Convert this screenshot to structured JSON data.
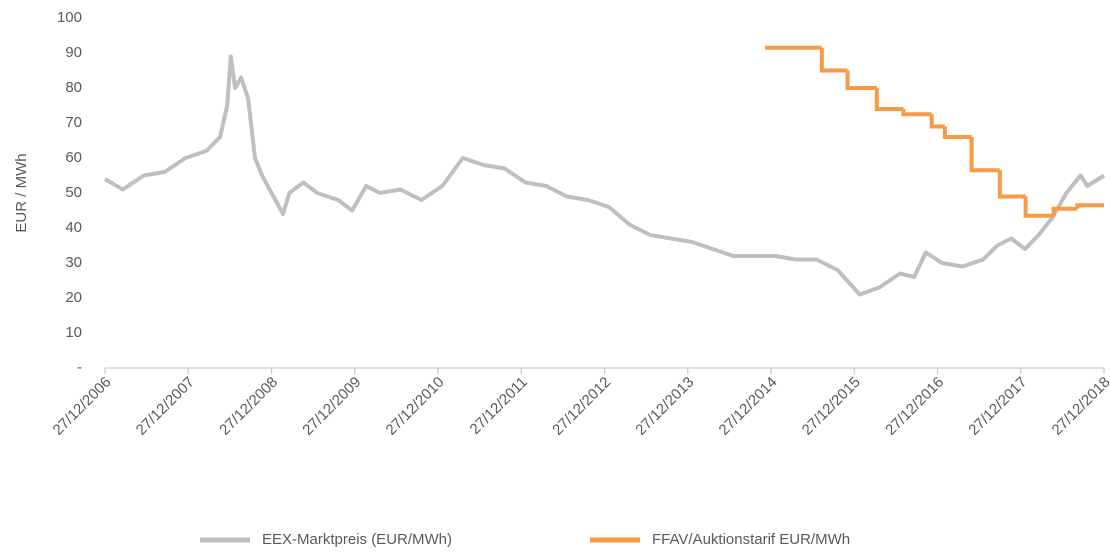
{
  "chart_data": {
    "type": "line",
    "y_label": "EUR / MWh",
    "xlim": [
      "2006-12-27",
      "2018-12-27"
    ],
    "xticks": [
      {
        "value": "2006-12-27",
        "label": "27/12/2006"
      },
      {
        "value": "2007-12-27",
        "label": "27/12/2007"
      },
      {
        "value": "2008-12-27",
        "label": "27/12/2008"
      },
      {
        "value": "2009-12-27",
        "label": "27/12/2009"
      },
      {
        "value": "2010-12-27",
        "label": "27/12/2010"
      },
      {
        "value": "2011-12-27",
        "label": "27/12/2011"
      },
      {
        "value": "2012-12-27",
        "label": "27/12/2012"
      },
      {
        "value": "2013-12-27",
        "label": "27/12/2013"
      },
      {
        "value": "2014-12-27",
        "label": "27/12/2014"
      },
      {
        "value": "2015-12-27",
        "label": "27/12/2015"
      },
      {
        "value": "2016-12-27",
        "label": "27/12/2016"
      },
      {
        "value": "2017-12-27",
        "label": "27/12/2017"
      },
      {
        "value": "2018-12-27",
        "label": "27/12/2018"
      }
    ],
    "ylim": [
      0,
      100
    ],
    "yticks": [
      {
        "value": 0,
        "label": "-"
      },
      10,
      20,
      30,
      40,
      50,
      60,
      70,
      80,
      90,
      100
    ],
    "series": [
      {
        "name": "EEX-Marktpreis (EUR/MWh)",
        "color": "#bfbfbf",
        "x": [
          "2006-12-27",
          "2007-03-15",
          "2007-06-15",
          "2007-09-15",
          "2007-12-15",
          "2008-03-15",
          "2008-05-15",
          "2008-06-15",
          "2008-07-01",
          "2008-07-20",
          "2008-08-15",
          "2008-09-15",
          "2008-10-15",
          "2008-11-15",
          "2009-02-15",
          "2009-03-15",
          "2009-05-15",
          "2009-07-15",
          "2009-10-15",
          "2009-12-15",
          "2010-02-15",
          "2010-04-15",
          "2010-07-15",
          "2010-10-15",
          "2011-01-15",
          "2011-04-15",
          "2011-07-15",
          "2011-10-15",
          "2012-01-15",
          "2012-04-15",
          "2012-07-15",
          "2012-10-15",
          "2013-01-15",
          "2013-04-15",
          "2013-07-15",
          "2013-10-15",
          "2014-01-15",
          "2014-04-15",
          "2014-07-15",
          "2014-10-15",
          "2015-01-15",
          "2015-04-15",
          "2015-07-15",
          "2015-10-15",
          "2016-01-20",
          "2016-04-15",
          "2016-07-15",
          "2016-09-15",
          "2016-11-05",
          "2017-01-15",
          "2017-04-15",
          "2017-07-15",
          "2017-09-15",
          "2017-11-15",
          "2018-01-15",
          "2018-03-15",
          "2018-05-15",
          "2018-07-15",
          "2018-09-15",
          "2018-10-15",
          "2018-12-27"
        ],
        "values": [
          54,
          51,
          55,
          56,
          60,
          62,
          66,
          75,
          89,
          80,
          83,
          77,
          60,
          55,
          44,
          50,
          53,
          50,
          48,
          45,
          52,
          50,
          51,
          48,
          52,
          60,
          58,
          57,
          53,
          52,
          49,
          48,
          46,
          41,
          38,
          37,
          36,
          34,
          32,
          32,
          32,
          31,
          31,
          28,
          21,
          23,
          27,
          26,
          33,
          30,
          29,
          31,
          35,
          37,
          34,
          38,
          43,
          50,
          55,
          52,
          55
        ]
      },
      {
        "name": "FFAV/Auktionstarif EUR/MWh",
        "color": "#f79a46",
        "step": "post",
        "x": [
          "2014-12-01",
          "2015-08-07",
          "2015-11-28",
          "2016-04-04",
          "2016-07-30",
          "2016-12-01",
          "2017-01-28",
          "2017-05-25",
          "2017-09-26",
          "2018-01-17",
          "2018-05-20",
          "2018-09-01",
          "2018-12-27"
        ],
        "values": [
          91.5,
          85,
          80,
          74,
          72.5,
          69,
          66,
          56.5,
          49,
          43.5,
          45.5,
          46.5,
          46.5
        ]
      }
    ],
    "legend": "bottom"
  }
}
